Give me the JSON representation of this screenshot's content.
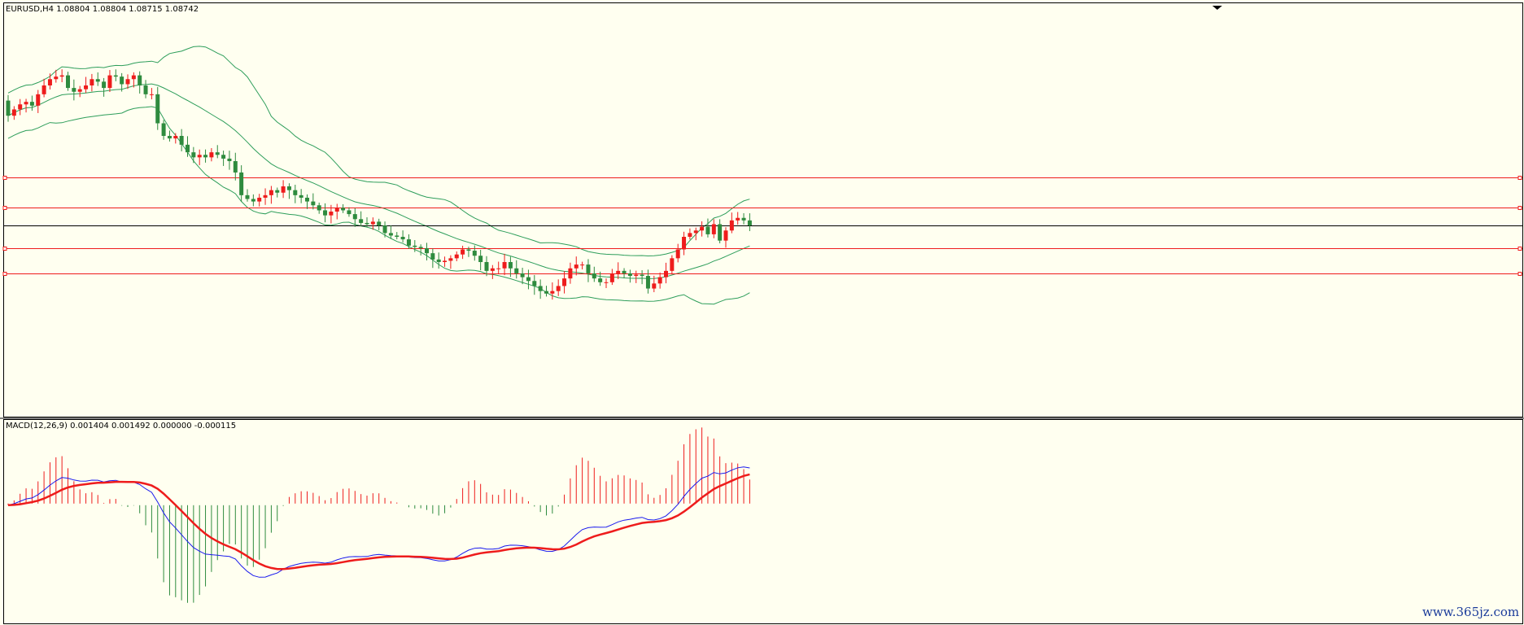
{
  "header": {
    "symbol_text": "EURUSD,H4  1.08804 1.08804 1.08715 1.08742",
    "macd_text": "MACD(12,26,9) 0.001404 0.001492 0.000000 -0.000115"
  },
  "watermark": "www.365jz.com",
  "colors": {
    "background": "#fffff0",
    "up_candle": "#ee1c1c",
    "down_candle": "#2e8b3e",
    "bands": "#2e9e5b",
    "level_lines": "#ee1c1c",
    "current_line": "#000000",
    "macd_line": "#1a1aee",
    "signal_line": "#ee1c1c"
  },
  "chart_data": [
    {
      "type": "candlestick",
      "title": "EURUSD,H4",
      "ohlc_text": "1.08804 1.08804 1.08715 1.08742",
      "ylim": [
        1.0725,
        1.1045
      ],
      "grid": false,
      "closes": [
        1.0961,
        1.0966,
        1.097,
        1.0972,
        1.0969,
        1.0978,
        1.0985,
        1.099,
        1.0992,
        1.0993,
        1.0983,
        1.098,
        1.0982,
        1.0985,
        1.099,
        1.0988,
        1.0983,
        1.0993,
        1.0992,
        1.0986,
        1.099,
        1.0993,
        1.0985,
        1.0978,
        1.0978,
        1.0955,
        1.0945,
        1.0943,
        1.0945,
        1.0938,
        1.0932,
        1.0928,
        1.093,
        1.0928,
        1.0932,
        1.093,
        1.0927,
        1.0925,
        1.0916,
        1.0898,
        1.0895,
        1.0893,
        1.0896,
        1.0898,
        1.0902,
        1.09,
        1.0905,
        1.0902,
        1.0898,
        1.0896,
        1.0893,
        1.089,
        1.0886,
        1.0882,
        1.0885,
        1.0888,
        1.0886,
        1.0883,
        1.0879,
        1.0876,
        1.0875,
        1.0877,
        1.0874,
        1.0868,
        1.0866,
        1.0865,
        1.0863,
        1.0858,
        1.0857,
        1.0856,
        1.0852,
        1.0847,
        1.0845,
        1.0846,
        1.0848,
        1.0851,
        1.0855,
        1.0854,
        1.085,
        1.0845,
        1.0838,
        1.084,
        1.084,
        1.0845,
        1.084,
        1.0836,
        1.0833,
        1.083,
        1.0826,
        1.0822,
        1.082,
        1.0822,
        1.0826,
        1.0832,
        1.084,
        1.0843,
        1.0843,
        1.0836,
        1.0832,
        1.0829,
        1.0829,
        1.0836,
        1.0838,
        1.0836,
        1.0834,
        1.0835,
        1.0834,
        1.0824,
        1.0828,
        1.0833,
        1.0838,
        1.0848,
        1.0855,
        1.0865,
        1.0868,
        1.087,
        1.0873,
        1.0867,
        1.0875,
        1.0862,
        1.087,
        1.0878,
        1.088,
        1.0878,
        1.0874
      ],
      "levels": [
        1.0912,
        1.0888,
        1.0856,
        1.0836
      ],
      "current_price": 1.08742
    },
    {
      "type": "macd",
      "title": "MACD(12,26,9)",
      "values_text": "0.001404 0.001492 0.000000 -0.000115",
      "ylim": [
        -0.003,
        0.002
      ],
      "grid": false
    }
  ]
}
